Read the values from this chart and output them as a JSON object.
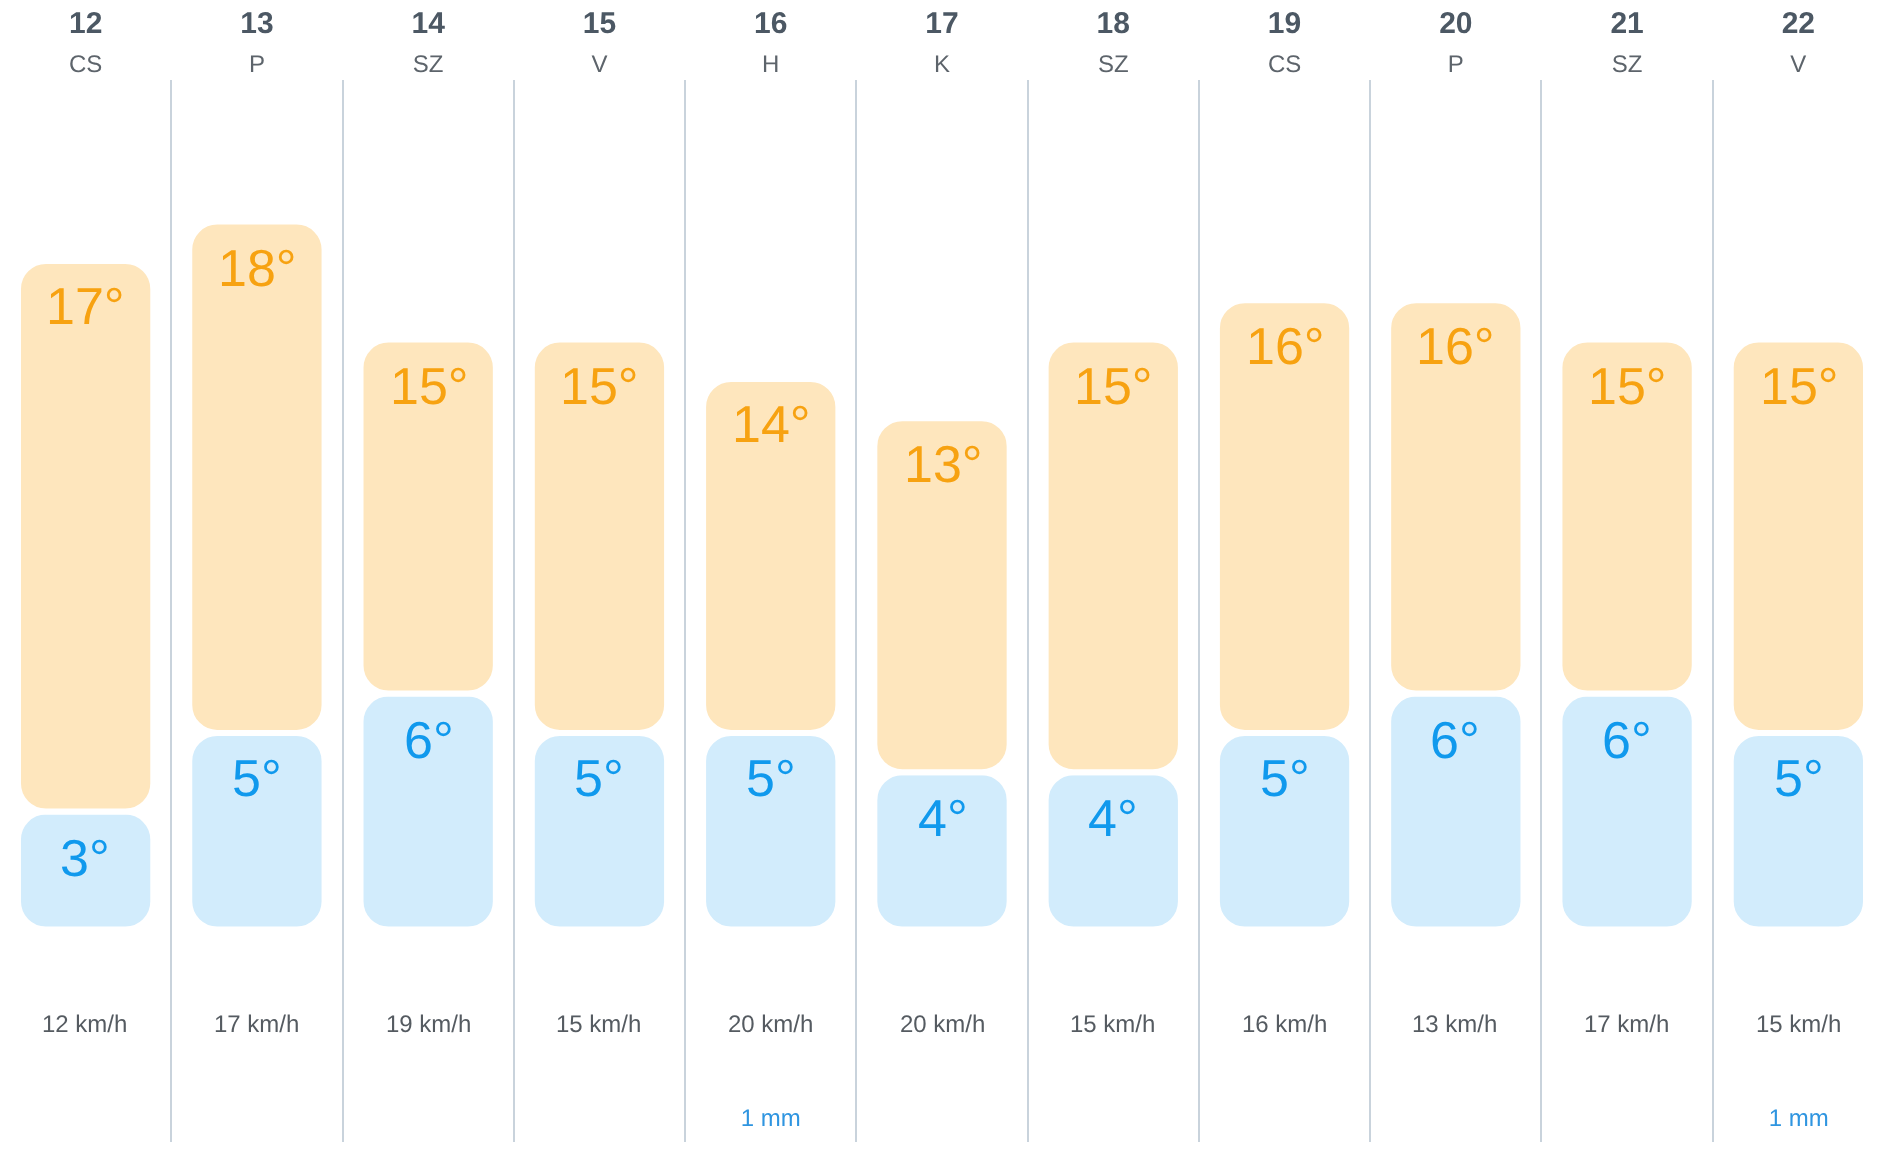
{
  "chart_data": {
    "type": "bar",
    "categories": [
      "12\nCS",
      "13\nP",
      "14\nSZ",
      "15\nV",
      "16\nH",
      "17\nK",
      "18\nSZ",
      "19\nCS",
      "20\nP",
      "21\nSZ",
      "22\nV"
    ],
    "stacked": true,
    "series": [
      {
        "color": "#d2ecfc",
        "values": [
          3,
          5,
          6,
          5,
          5,
          4,
          4,
          5,
          6,
          6,
          5
        ],
        "value_labels": [
          "3°",
          "5°",
          "6°",
          "5°",
          "5°",
          "4°",
          "4°",
          "5°",
          "6°",
          "6°",
          "5°"
        ]
      },
      {
        "color": "#fee6bd",
        "values": [
          14,
          13,
          9,
          10,
          9,
          9,
          11,
          11,
          10,
          9,
          10
        ]
      }
    ],
    "totals": [
      "17°",
      "18°",
      "15°",
      "15°",
      "14°",
      "13°",
      "15°",
      "16°",
      "16°",
      "15°",
      "15°"
    ],
    "annotations": [
      "12 km/h",
      "17 km/h",
      "19 km/h",
      "15 km/h",
      "20 km/h\n1 mm",
      "20 km/h",
      "15 km/h",
      "16 km/h",
      "13 km/h",
      "17 km/h",
      "15 km/h\n1 mm"
    ],
    "grid": "x",
    "legend": false,
    "tick_labels": "x"
  }
}
